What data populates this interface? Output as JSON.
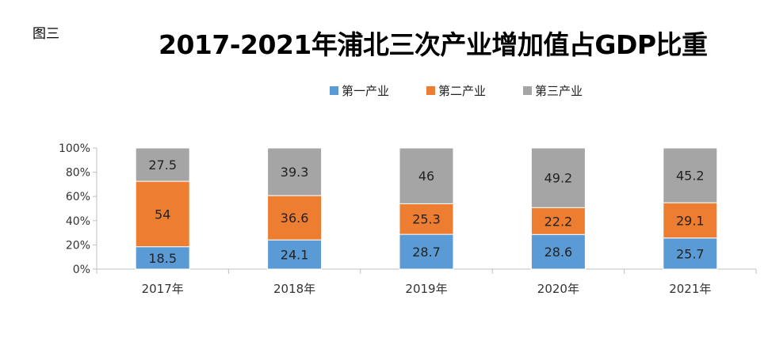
{
  "figure_label": "图三",
  "chart_data": {
    "type": "bar",
    "stacked": true,
    "title": "2017-2021年浦北三次产业增加值占GDP比重",
    "categories": [
      "2017年",
      "2018年",
      "2019年",
      "2020年",
      "2021年"
    ],
    "series": [
      {
        "name": "第一产业",
        "color": "#5b9bd5",
        "values": [
          18.5,
          24.1,
          28.7,
          28.6,
          25.7
        ]
      },
      {
        "name": "第二产业",
        "color": "#ed7d31",
        "values": [
          54,
          36.6,
          25.3,
          22.2,
          29.1
        ]
      },
      {
        "name": "第三产业",
        "color": "#a5a5a5",
        "values": [
          27.5,
          39.3,
          46,
          49.2,
          45.2
        ]
      }
    ],
    "yticks": [
      "0%",
      "20%",
      "40%",
      "60%",
      "80%",
      "100%"
    ],
    "ylim": [
      0,
      100
    ],
    "legend_position": "top",
    "grid": false
  }
}
